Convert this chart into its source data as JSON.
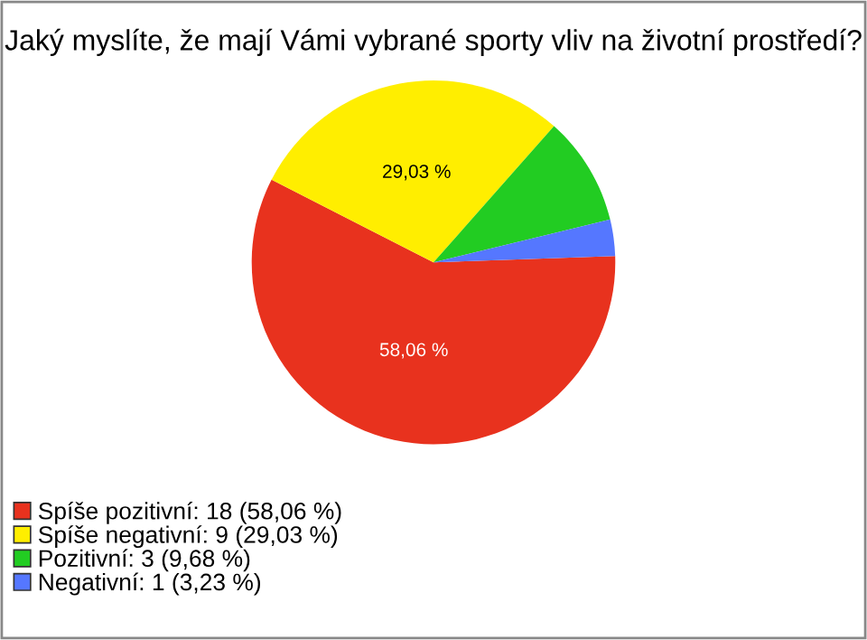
{
  "chart_data": {
    "type": "pie",
    "title": "Jaký myslíte, že mají Vámi vybrané sporty vliv na životní prostředí?",
    "categories": [
      "Spíše pozitivní: 18 (58,06 %)",
      "Spíše negativní: 9 (29,03 %)",
      "Pozitivní: 3 (9,68 %)",
      "Negativní: 1 (3,23 %)"
    ],
    "values": [
      58.06,
      29.03,
      9.68,
      3.23
    ],
    "colors": [
      "#e8321e",
      "#ffee00",
      "#22cc22",
      "#5577ff"
    ],
    "value_labels": [
      "58,06 %",
      "29,03 %",
      null,
      null
    ],
    "legend": "bottom left"
  }
}
